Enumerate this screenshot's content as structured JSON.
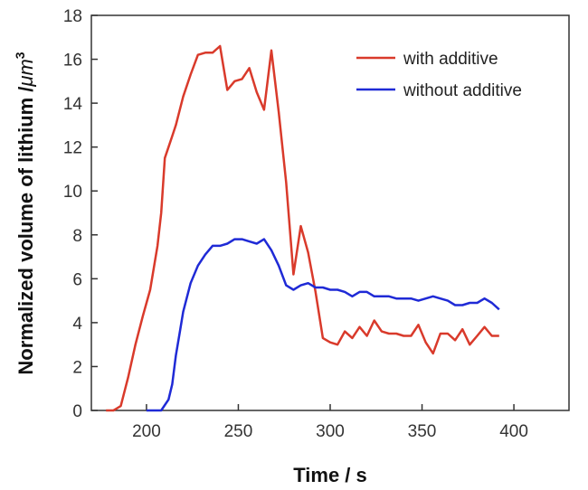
{
  "chart_data": {
    "type": "line",
    "xlabel": "Time / s",
    "ylabel_main": "Normalized volume of lithium /",
    "ylabel_unit": "μm",
    "ylabel_exp": "3",
    "xlim": [
      170,
      430
    ],
    "ylim": [
      0,
      18
    ],
    "xticks": [
      200,
      250,
      300,
      350,
      400
    ],
    "yticks": [
      0,
      2,
      4,
      6,
      8,
      10,
      12,
      14,
      16,
      18
    ],
    "grid": false,
    "legend_position": "top-right",
    "series": [
      {
        "name": "with additive",
        "color": "#d93a2b",
        "x": [
          178,
          182,
          186,
          190,
          194,
          198,
          202,
          206,
          208,
          210,
          212,
          214,
          216,
          220,
          224,
          228,
          232,
          236,
          240,
          244,
          248,
          252,
          256,
          260,
          264,
          268,
          272,
          276,
          280,
          284,
          288,
          292,
          296,
          300,
          304,
          308,
          312,
          316,
          320,
          324,
          328,
          332,
          336,
          340,
          344,
          348,
          352,
          356,
          360,
          364,
          368,
          372,
          376,
          380,
          384,
          388,
          392
        ],
        "y": [
          0,
          0,
          0.2,
          1.5,
          3.0,
          4.3,
          5.5,
          7.5,
          9.0,
          11.5,
          12.0,
          12.5,
          13.0,
          14.3,
          15.3,
          16.2,
          16.3,
          16.3,
          16.6,
          14.6,
          15.0,
          15.1,
          15.6,
          14.5,
          13.7,
          16.4,
          13.6,
          10.4,
          6.2,
          8.4,
          7.2,
          5.4,
          3.3,
          3.1,
          3.0,
          3.6,
          3.3,
          3.8,
          3.4,
          4.1,
          3.6,
          3.5,
          3.5,
          3.4,
          3.4,
          3.9,
          3.1,
          2.6,
          3.5,
          3.5,
          3.2,
          3.7,
          3.0,
          3.4,
          3.8,
          3.4,
          3.4
        ]
      },
      {
        "name": "without additive",
        "color": "#1f2ad6",
        "x": [
          200,
          204,
          208,
          212,
          214,
          216,
          218,
          220,
          224,
          228,
          232,
          236,
          240,
          244,
          248,
          252,
          256,
          260,
          264,
          268,
          272,
          276,
          280,
          284,
          288,
          292,
          296,
          300,
          304,
          308,
          312,
          316,
          320,
          324,
          328,
          332,
          336,
          340,
          344,
          348,
          352,
          356,
          360,
          364,
          368,
          372,
          376,
          380,
          384,
          388,
          392
        ],
        "y": [
          0,
          0,
          0,
          0.5,
          1.2,
          2.5,
          3.5,
          4.5,
          5.8,
          6.6,
          7.1,
          7.5,
          7.5,
          7.6,
          7.8,
          7.8,
          7.7,
          7.6,
          7.8,
          7.3,
          6.6,
          5.7,
          5.5,
          5.7,
          5.8,
          5.6,
          5.6,
          5.5,
          5.5,
          5.4,
          5.2,
          5.4,
          5.4,
          5.2,
          5.2,
          5.2,
          5.1,
          5.1,
          5.1,
          5.0,
          5.1,
          5.2,
          5.1,
          5.0,
          4.8,
          4.8,
          4.9,
          4.9,
          5.1,
          4.9,
          4.6
        ]
      }
    ]
  }
}
